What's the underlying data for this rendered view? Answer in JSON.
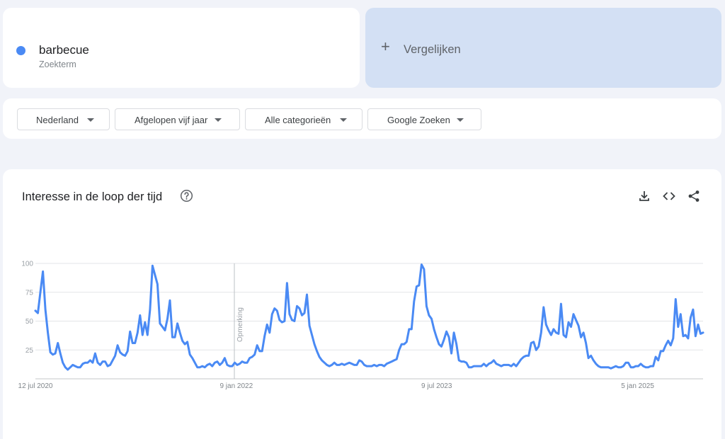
{
  "term": {
    "name": "barbecue",
    "subtitle": "Zoekterm",
    "color": "#4a8af4"
  },
  "compare": {
    "label": "Vergelijken"
  },
  "filters": [
    {
      "label": "Nederland"
    },
    {
      "label": "Afgelopen vijf jaar"
    },
    {
      "label": "Alle categorieën"
    },
    {
      "label": "Google Zoeken"
    }
  ],
  "panel": {
    "title": "Interesse in de loop der tijd",
    "icons": [
      "help-icon",
      "download-icon",
      "embed-icon",
      "share-icon"
    ]
  },
  "chart_data": {
    "type": "line",
    "yticks": [
      "100",
      "75",
      "50",
      "25"
    ],
    "xticks": [
      "12 jul 2020",
      "9 jan 2022",
      "9 jul 2023",
      "5 jan 2025"
    ],
    "ylim": [
      0,
      100
    ],
    "grid": true,
    "annotation": "Opmerking",
    "series": [
      {
        "color": "#4a8af4",
        "values": [
          59,
          57,
          75,
          93,
          60,
          40,
          23,
          21,
          22,
          31,
          22,
          14,
          10,
          8,
          10,
          12,
          11,
          10,
          10,
          13,
          14,
          14,
          16,
          14,
          22,
          14,
          12,
          15,
          15,
          11,
          12,
          16,
          20,
          29,
          23,
          21,
          20,
          24,
          41,
          31,
          31,
          40,
          55,
          38,
          49,
          38,
          60,
          98,
          90,
          82,
          48,
          45,
          42,
          52,
          68,
          36,
          36,
          48,
          40,
          33,
          30,
          32,
          21,
          18,
          14,
          10,
          10,
          11,
          10,
          12,
          13,
          11,
          14,
          15,
          12,
          14,
          18,
          12,
          11,
          11,
          14,
          12,
          13,
          15,
          14,
          14,
          18,
          19,
          21,
          29,
          24,
          24,
          37,
          47,
          40,
          56,
          61,
          59,
          51,
          49,
          50,
          83,
          56,
          51,
          50,
          63,
          61,
          55,
          57,
          73,
          46,
          38,
          30,
          24,
          19,
          16,
          14,
          12,
          11,
          12,
          14,
          12,
          12,
          13,
          12,
          13,
          14,
          13,
          12,
          12,
          16,
          15,
          12,
          11,
          11,
          11,
          12,
          11,
          12,
          12,
          11,
          13,
          14,
          15,
          16,
          17,
          25,
          30,
          30,
          32,
          43,
          43,
          67,
          80,
          81,
          99,
          95,
          63,
          55,
          52,
          43,
          36,
          30,
          28,
          34,
          41,
          36,
          22,
          40,
          30,
          16,
          15,
          15,
          14,
          10,
          10,
          11,
          11,
          11,
          11,
          13,
          11,
          13,
          14,
          16,
          13,
          12,
          11,
          12,
          12,
          12,
          11,
          13,
          11,
          14,
          17,
          19,
          20,
          20,
          31,
          32,
          25,
          28,
          40,
          62,
          47,
          42,
          38,
          43,
          40,
          39,
          65,
          38,
          36,
          49,
          45,
          56,
          51,
          46,
          36,
          40,
          31,
          18,
          20,
          16,
          13,
          11,
          10,
          10,
          10,
          10,
          9,
          10,
          11,
          10,
          10,
          11,
          14,
          14,
          10,
          10,
          11,
          11,
          13,
          11,
          10,
          10,
          11,
          11,
          19,
          16,
          24,
          24,
          29,
          33,
          29,
          35,
          69,
          45,
          56,
          37,
          38,
          35,
          53,
          60,
          37,
          47,
          39,
          40
        ]
      }
    ]
  }
}
